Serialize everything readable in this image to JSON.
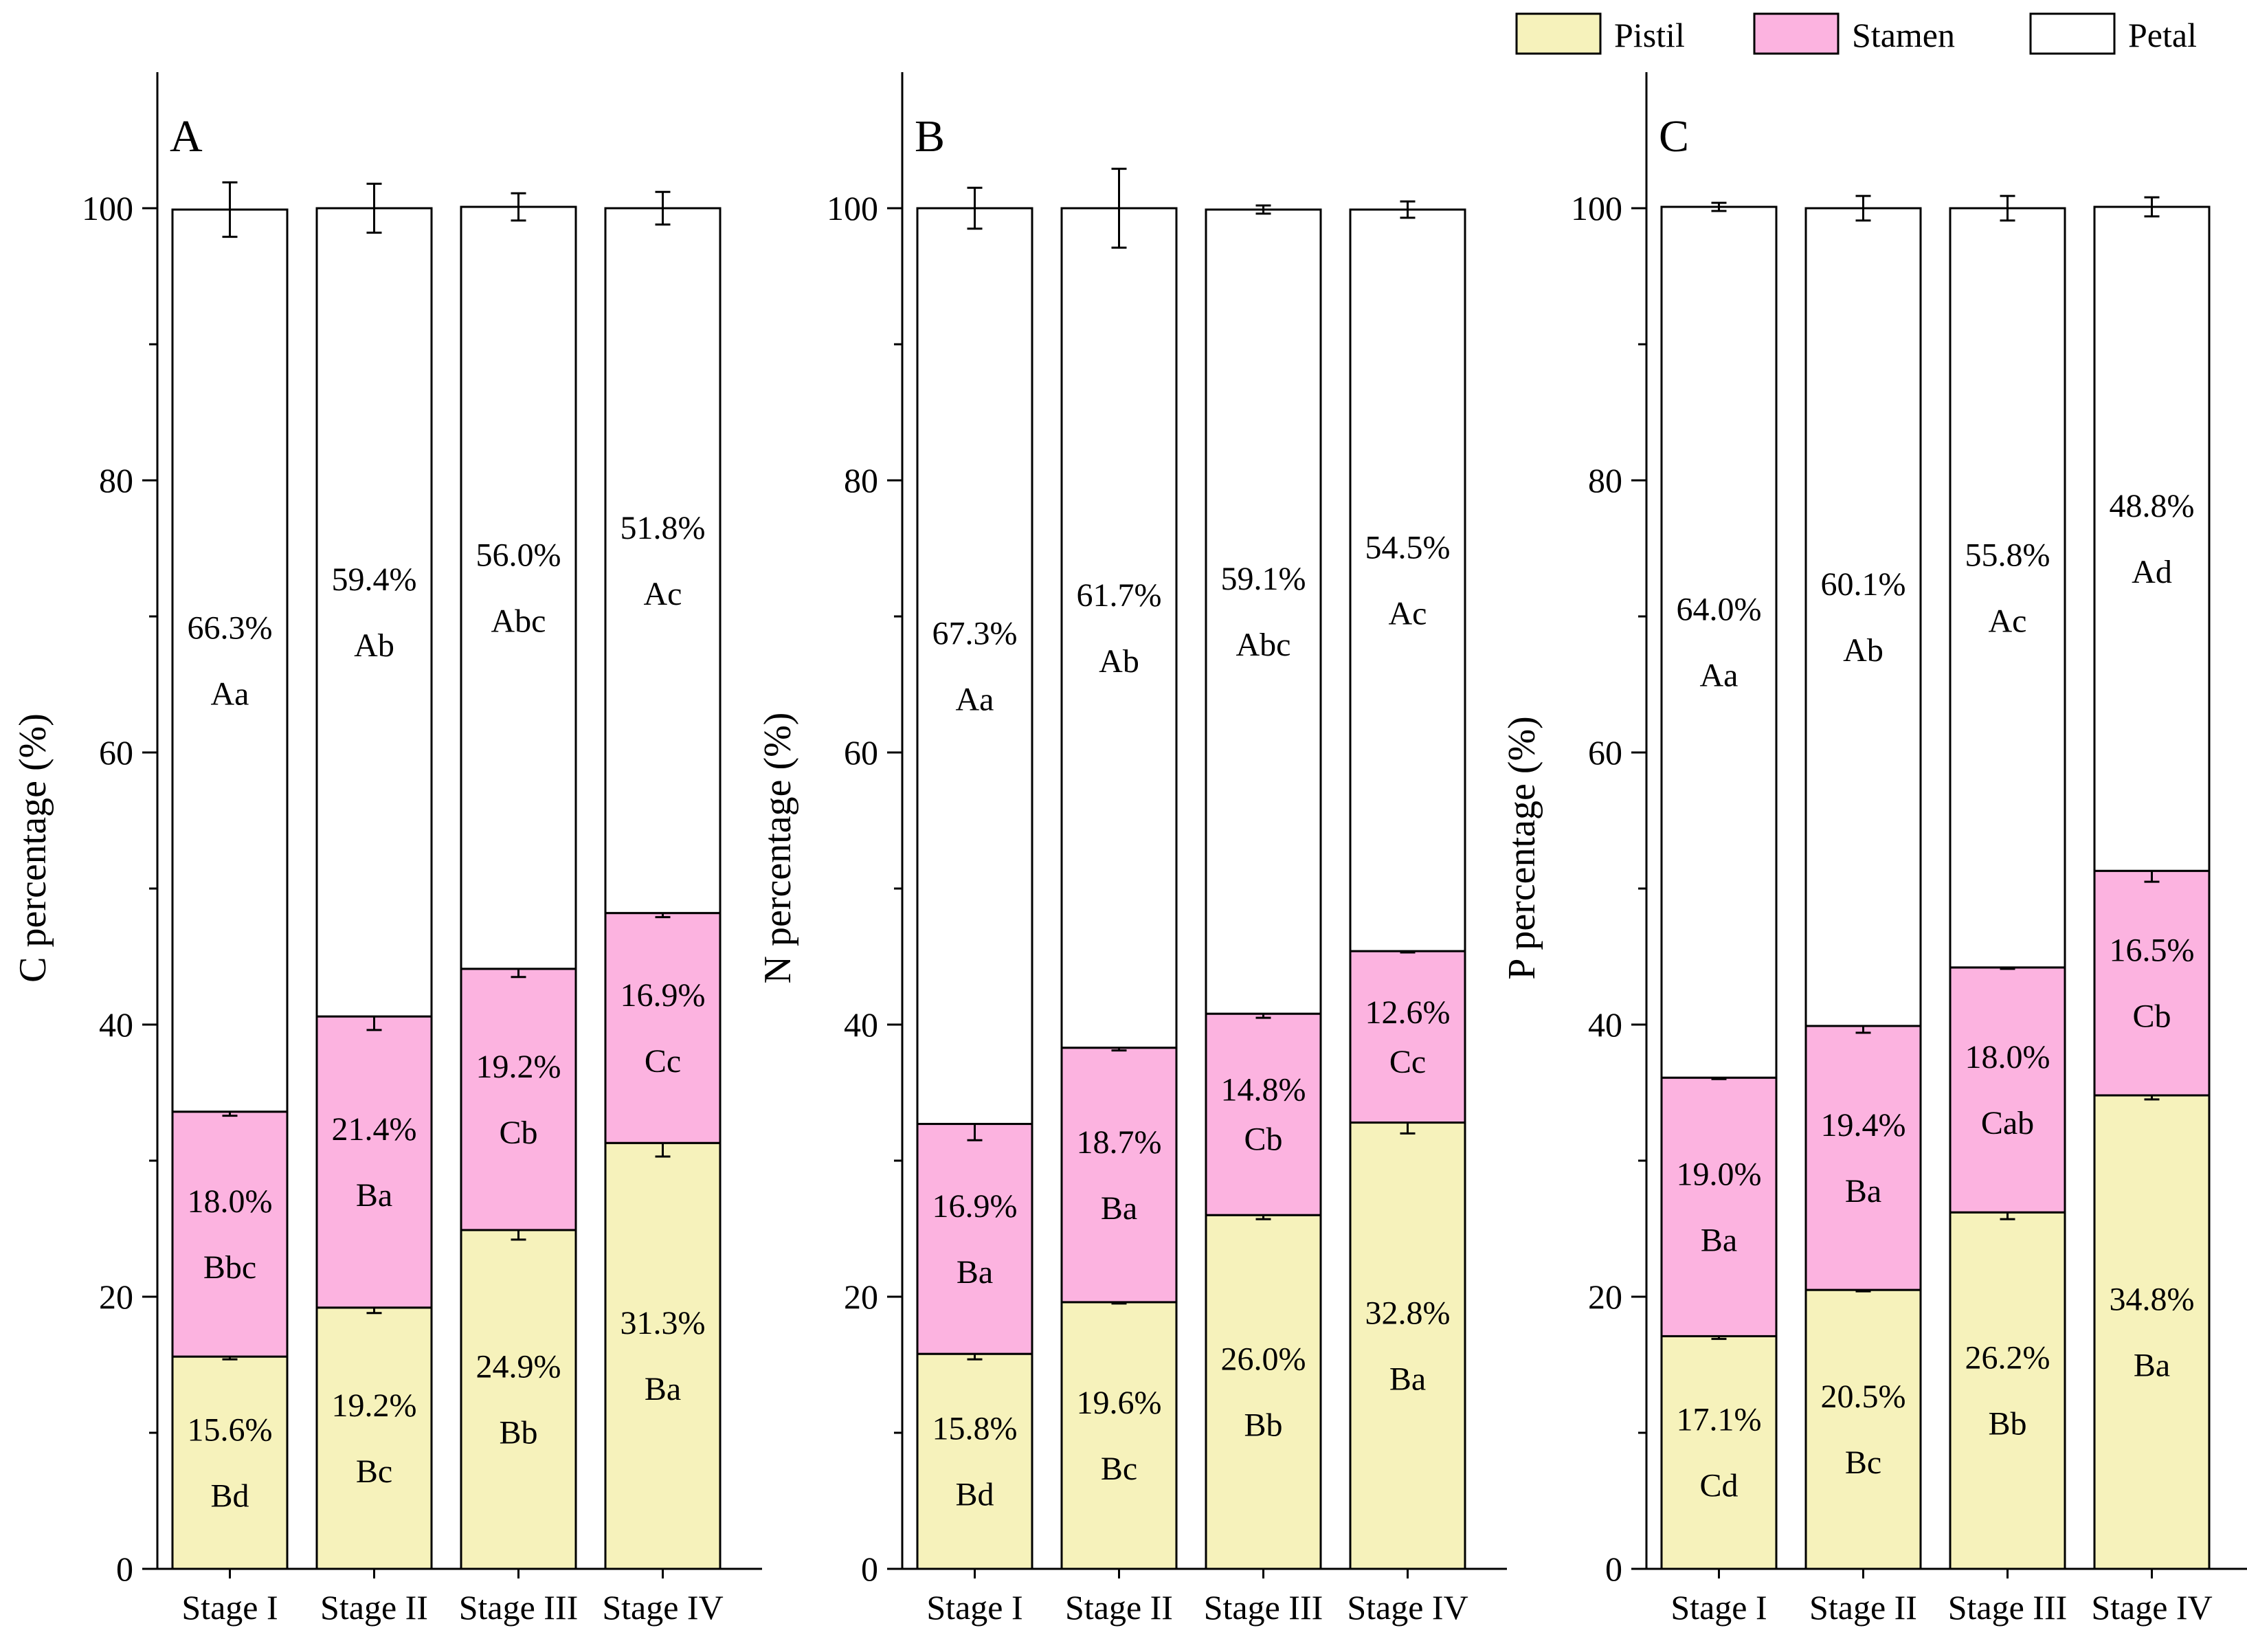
{
  "legend": [
    {
      "name": "Pistil",
      "color": "#f6f2bb"
    },
    {
      "name": "Stamen",
      "color": "#fcb3e0"
    },
    {
      "name": "Petal",
      "color": "#ffffff"
    }
  ],
  "colors": {
    "pistil": "#f6f2bb",
    "stamen": "#fcb3e0",
    "petal": "#ffffff",
    "axis": "#000000"
  },
  "chart_data": [
    {
      "type": "bar",
      "stacked": true,
      "panel_label": "A",
      "ylabel": "C  percentage (%)",
      "ylim": [
        0,
        110
      ],
      "yticks": [
        "0",
        "20",
        "40",
        "60",
        "80",
        "100"
      ],
      "categories": [
        "Stage I",
        "Stage II",
        "Stage III",
        "Stage IV"
      ],
      "series": [
        {
          "name": "Pistil",
          "values": [
            15.6,
            19.2,
            24.9,
            31.3
          ],
          "labels": [
            "15.6%",
            "19.2%",
            "24.9%",
            "31.3%"
          ],
          "letters": [
            "Bd",
            "Bc",
            "Bb",
            "Ba"
          ],
          "errors": [
            0.2,
            0.4,
            0.7,
            1.0
          ]
        },
        {
          "name": "Stamen",
          "values": [
            18.0,
            21.4,
            19.2,
            16.9
          ],
          "labels": [
            "18.0%",
            "21.4%",
            "19.2%",
            "16.9%"
          ],
          "letters": [
            "Bbc",
            "Ba",
            "Cb",
            "Cc"
          ],
          "errors": [
            0.3,
            1.0,
            0.6,
            0.3
          ]
        },
        {
          "name": "Petal",
          "values": [
            66.3,
            59.4,
            56.0,
            51.8
          ],
          "labels": [
            "66.3%",
            "59.4%",
            "56.0%",
            "51.8%"
          ],
          "letters": [
            "Aa",
            "Ab",
            "Abc",
            "Ac"
          ],
          "errors": [
            2.0,
            1.8,
            1.0,
            1.2
          ]
        }
      ]
    },
    {
      "type": "bar",
      "stacked": true,
      "panel_label": "B",
      "ylabel": "N percentage (%)",
      "ylim": [
        0,
        110
      ],
      "yticks": [
        "0",
        "20",
        "40",
        "60",
        "80",
        "100"
      ],
      "categories": [
        "Stage I",
        "Stage II",
        "Stage III",
        "Stage IV"
      ],
      "series": [
        {
          "name": "Pistil",
          "values": [
            15.8,
            19.6,
            26.0,
            32.8
          ],
          "labels": [
            "15.8%",
            "19.6%",
            "26.0%",
            "32.8%"
          ],
          "letters": [
            "Bd",
            "Bc",
            "Bb",
            "Ba"
          ],
          "errors": [
            0.4,
            0.1,
            0.3,
            0.8
          ]
        },
        {
          "name": "Stamen",
          "values": [
            16.9,
            18.7,
            14.8,
            12.6
          ],
          "labels": [
            "16.9%",
            "18.7%",
            "14.8%",
            "12.6%"
          ],
          "letters": [
            "Ba",
            "Ba",
            "Cb",
            "Cc"
          ],
          "errors": [
            1.2,
            0.2,
            0.3,
            0.1
          ]
        },
        {
          "name": "Petal",
          "values": [
            67.3,
            61.7,
            59.1,
            54.5
          ],
          "labels": [
            "67.3%",
            "61.7%",
            "59.1%",
            "54.5%"
          ],
          "letters": [
            "Aa",
            "Ab",
            "Abc",
            "Ac"
          ],
          "errors": [
            1.5,
            2.9,
            0.3,
            0.6
          ]
        }
      ]
    },
    {
      "type": "bar",
      "stacked": true,
      "panel_label": "C",
      "ylabel": "P  percentage (%)",
      "ylim": [
        0,
        110
      ],
      "yticks": [
        "0",
        "20",
        "40",
        "60",
        "80",
        "100"
      ],
      "categories": [
        "Stage I",
        "Stage II",
        "Stage III",
        "Stage IV"
      ],
      "series": [
        {
          "name": "Pistil",
          "values": [
            17.1,
            20.5,
            26.2,
            34.8
          ],
          "labels": [
            "17.1%",
            "20.5%",
            "26.2%",
            "34.8%"
          ],
          "letters": [
            "Cd",
            "Bc",
            "Bb",
            "Ba"
          ],
          "errors": [
            0.2,
            0.1,
            0.5,
            0.3
          ]
        },
        {
          "name": "Stamen",
          "values": [
            19.0,
            19.4,
            18.0,
            16.5
          ],
          "labels": [
            "19.0%",
            "19.4%",
            "18.0%",
            "16.5%"
          ],
          "letters": [
            "Ba",
            "Ba",
            "Cab",
            "Cb"
          ],
          "errors": [
            0.1,
            0.5,
            0.1,
            0.8
          ]
        },
        {
          "name": "Petal",
          "values": [
            64.0,
            60.1,
            55.8,
            48.8
          ],
          "labels": [
            "64.0%",
            "60.1%",
            "55.8%",
            "48.8%"
          ],
          "letters": [
            "Aa",
            "Ab",
            "Ac",
            "Ad"
          ],
          "errors": [
            0.3,
            0.9,
            0.9,
            0.7
          ]
        }
      ]
    }
  ]
}
